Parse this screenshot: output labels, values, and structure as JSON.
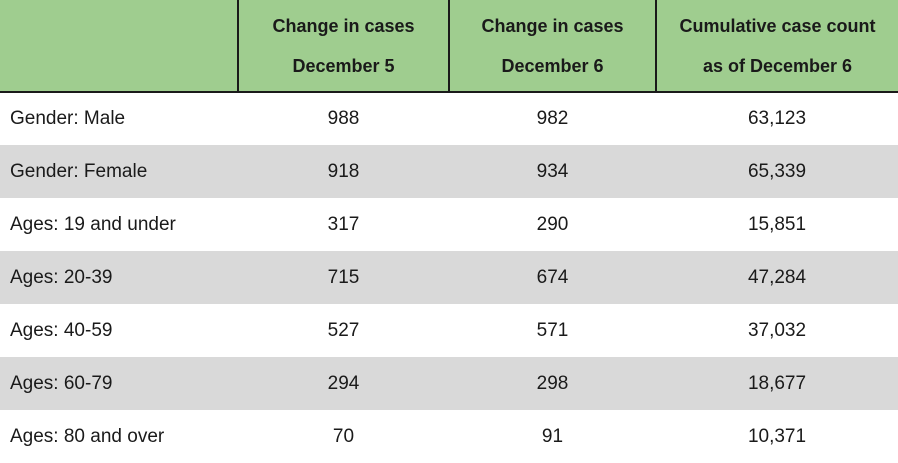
{
  "table": {
    "headers": [
      {
        "line1": "",
        "line2": ""
      },
      {
        "line1": "Change in cases",
        "line2": "December 5"
      },
      {
        "line1": "Change in cases",
        "line2": "December 6"
      },
      {
        "line1": "Cumulative case count",
        "line2": "as of December 6"
      }
    ],
    "rows": [
      {
        "label": "Gender: Male",
        "dec5": "988",
        "dec6": "982",
        "cumulative": "63,123"
      },
      {
        "label": "Gender: Female",
        "dec5": "918",
        "dec6": "934",
        "cumulative": "65,339"
      },
      {
        "label": "Ages: 19 and under",
        "dec5": "317",
        "dec6": "290",
        "cumulative": "15,851"
      },
      {
        "label": "Ages: 20-39",
        "dec5": "715",
        "dec6": "674",
        "cumulative": "47,284"
      },
      {
        "label": "Ages: 40-59",
        "dec5": "527",
        "dec6": "571",
        "cumulative": "37,032"
      },
      {
        "label": "Ages: 60-79",
        "dec5": "294",
        "dec6": "298",
        "cumulative": "18,677"
      },
      {
        "label": "Ages: 80 and over",
        "dec5": "70",
        "dec6": "91",
        "cumulative": "10,371"
      }
    ]
  },
  "colors": {
    "header_bg": "#9fcd8f",
    "alt_row_bg": "#d9d9d9"
  }
}
